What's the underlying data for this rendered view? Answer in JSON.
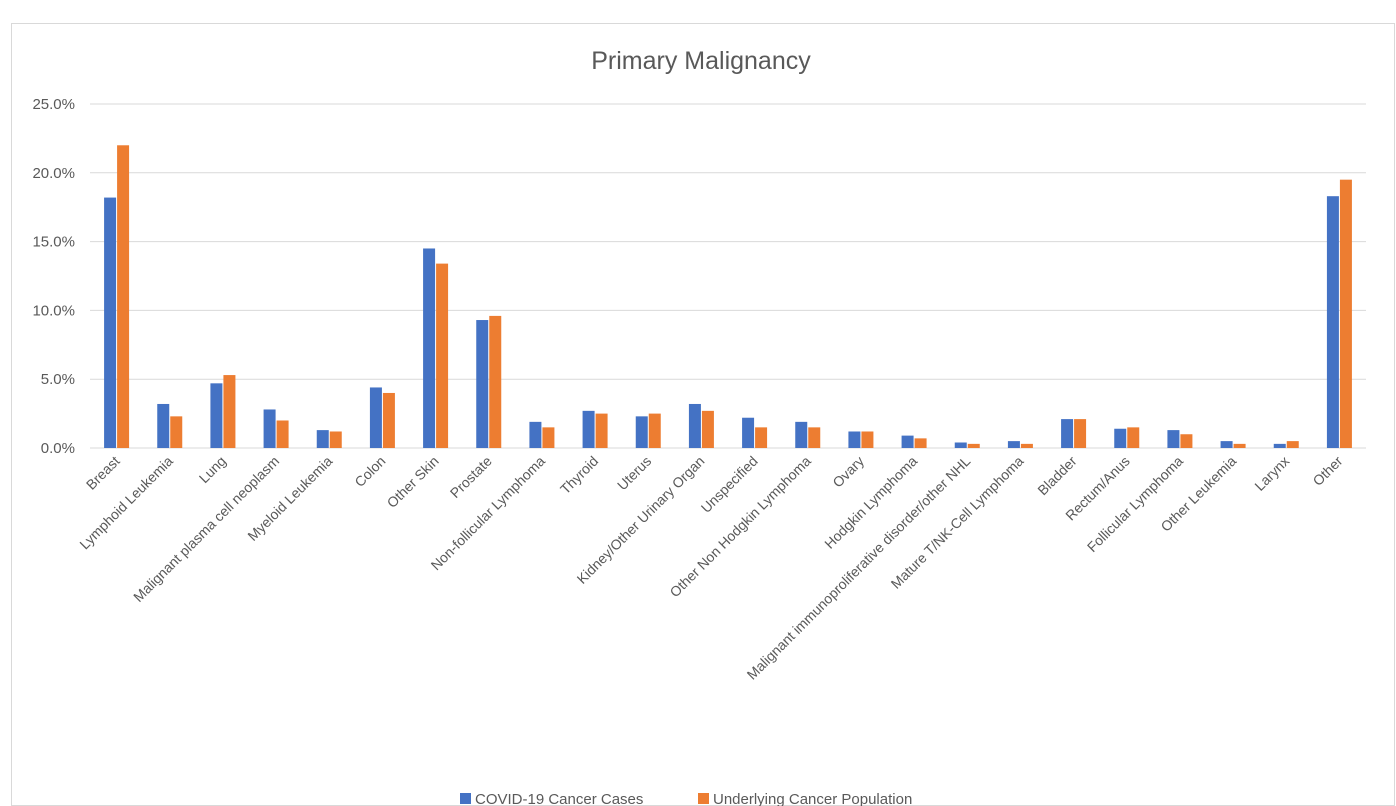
{
  "chart_data": {
    "type": "bar",
    "title": "Primary Malignancy",
    "xlabel": "",
    "ylabel": "",
    "ylim": [
      0,
      25
    ],
    "y_tick_labels": [
      "0.0%",
      "5.0%",
      "10.0%",
      "15.0%",
      "20.0%",
      "25.0%"
    ],
    "y_tick_values": [
      0,
      5,
      10,
      15,
      20,
      25
    ],
    "grid": true,
    "legend_position": "bottom",
    "categories": [
      "Breast",
      "Lymphoid Leukemia",
      "Lung",
      "Malignant plasma cell neoplasm",
      "Myeloid Leukemia",
      "Colon",
      "Other Skin",
      "Prostate",
      "Non-follicular Lymphoma",
      "Thyroid",
      "Uterus",
      "Kidney/Other Urinary Organ",
      "Unspecified",
      "Other Non Hodgkin Lymphoma",
      "Ovary",
      "Hodgkin Lymphoma",
      "Malignant immunoproliferative disorder/other NHL",
      "Mature T/NK-Cell Lymphoma",
      "Bladder",
      "Rectum/Anus",
      "Follicular Lymphoma",
      "Other Leukemia",
      "Larynx",
      "Other"
    ],
    "series": [
      {
        "name": "COVID-19 Cancer Cases",
        "color": "#4472c4",
        "values": [
          18.2,
          3.2,
          4.7,
          2.8,
          1.3,
          4.4,
          14.5,
          9.3,
          1.9,
          2.7,
          2.3,
          3.2,
          2.2,
          1.9,
          1.2,
          0.9,
          0.4,
          0.5,
          2.1,
          1.4,
          1.3,
          0.5,
          0.3,
          18.3
        ]
      },
      {
        "name": "Underlying Cancer Population",
        "color": "#ed7d31",
        "values": [
          22.0,
          2.3,
          5.3,
          2.0,
          1.2,
          4.0,
          13.4,
          9.6,
          1.5,
          2.5,
          2.5,
          2.7,
          1.5,
          1.5,
          1.2,
          0.7,
          0.3,
          0.3,
          2.1,
          1.5,
          1.0,
          0.3,
          0.5,
          19.5
        ]
      }
    ]
  }
}
